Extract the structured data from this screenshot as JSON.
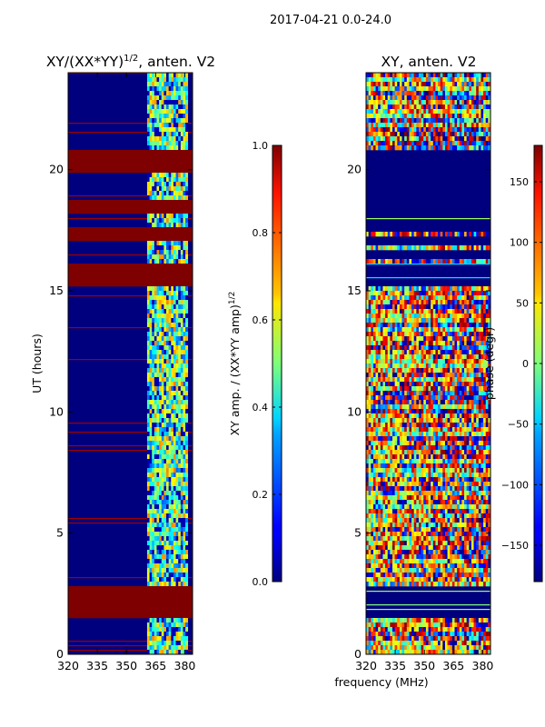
{
  "suptitle": "2017-04-21 0.0-24.0",
  "xlabel_shared": "frequency (MHz)",
  "chart_data": [
    {
      "type": "heatmap",
      "title": "XY/(XX*YY)",
      "title_exponent": "1/2",
      "title_suffix": ", anten. V2",
      "xlabel": "",
      "ylabel": "UT (hours)",
      "xlim": [
        320,
        384
      ],
      "ylim": [
        0,
        24
      ],
      "xticks": [
        "320",
        "335",
        "350",
        "365",
        "380"
      ],
      "xtick_values": [
        320,
        335,
        350,
        365,
        380
      ],
      "yticks": [
        "0",
        "5",
        "10",
        "15",
        "20"
      ],
      "ytick_values": [
        0,
        5,
        10,
        15,
        20
      ],
      "saturated_bands_hours": [
        [
          1.45,
          2.9
        ],
        [
          15.2,
          16.1
        ],
        [
          17.05,
          17.6
        ],
        [
          18.15,
          18.7
        ],
        [
          19.95,
          20.8
        ]
      ],
      "active_band_mhz": [
        361,
        382
      ],
      "colorbar": {
        "label": "XY amp. / (XX*YY amp)",
        "label_exponent": "1/2",
        "range": [
          0.0,
          1.0
        ],
        "ticks": [
          "0.0",
          "0.2",
          "0.4",
          "0.6",
          "0.8",
          "1.0"
        ],
        "tick_values": [
          0.0,
          0.2,
          0.4,
          0.6,
          0.8,
          1.0
        ],
        "colormap": "jet"
      }
    },
    {
      "type": "heatmap",
      "title": "XY, anten. V2",
      "xlabel": "frequency (MHz)",
      "ylabel": "",
      "xlim": [
        320,
        384
      ],
      "ylim": [
        0,
        24
      ],
      "xticks": [
        "320",
        "335",
        "350",
        "365",
        "380"
      ],
      "xtick_values": [
        320,
        335,
        350,
        365,
        380
      ],
      "yticks": [
        "0",
        "5",
        "10",
        "15",
        "20"
      ],
      "ytick_values": [
        0,
        5,
        10,
        15,
        20
      ],
      "colorbar": {
        "label": "phase (degr)",
        "range": [
          -180,
          180
        ],
        "ticks": [
          "−150",
          "−100",
          "−50",
          "0",
          "50",
          "100",
          "150"
        ],
        "tick_values": [
          -150,
          -100,
          -50,
          0,
          50,
          100,
          150
        ],
        "colormap": "jet"
      }
    }
  ]
}
